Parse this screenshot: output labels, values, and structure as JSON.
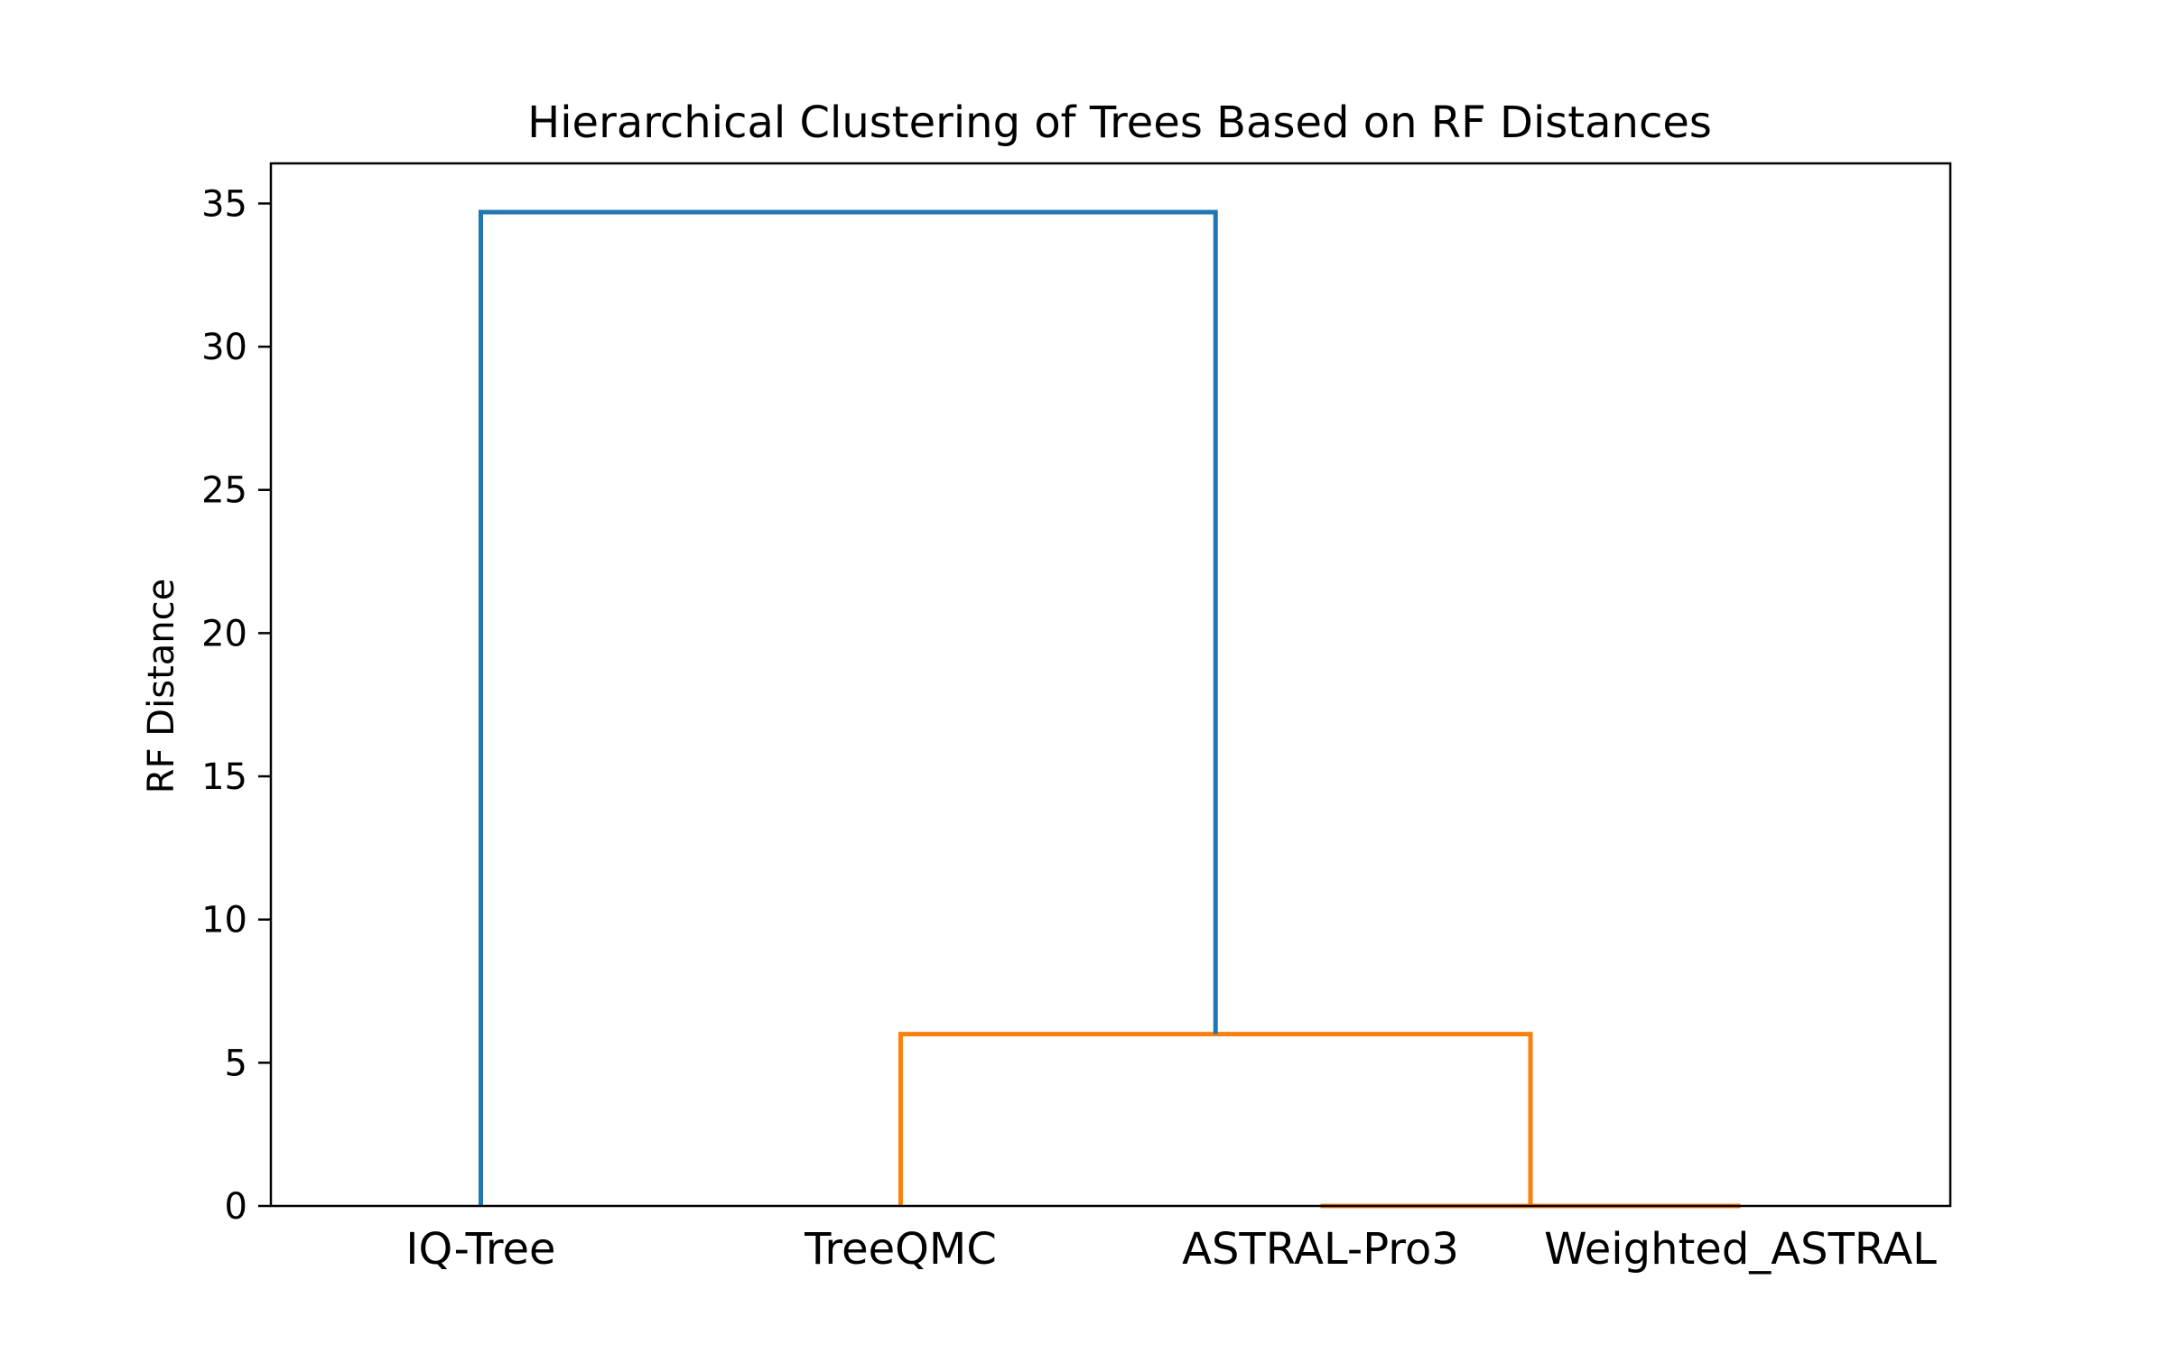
{
  "chart_data": {
    "type": "dendrogram",
    "title": "Hierarchical Clustering of Trees Based on RF Distances",
    "xlabel": "",
    "ylabel": "RF Distance",
    "ylim": [
      0,
      36.4
    ],
    "yticks": [
      0,
      5,
      10,
      15,
      20,
      25,
      30,
      35
    ],
    "leaves": [
      "IQ-Tree",
      "TreeQMC",
      "ASTRAL-Pro3",
      "Weighted_ASTRAL"
    ],
    "grid": false,
    "links": [
      {
        "left": "ASTRAL-Pro3",
        "right": "Weighted_ASTRAL",
        "height": 0.0,
        "color": "#ff7f0e"
      },
      {
        "left": "TreeQMC",
        "right": "ASTRAL-Pro3 + Weighted_ASTRAL",
        "height": 6.0,
        "color": "#ff7f0e"
      },
      {
        "left": "IQ-Tree",
        "right": "TreeQMC + ASTRAL-Pro3 + Weighted_ASTRAL",
        "height": 34.7,
        "color": "#1f77b4"
      }
    ],
    "colors": {
      "above_threshold": "#1f77b4",
      "cluster": "#ff7f0e"
    }
  }
}
